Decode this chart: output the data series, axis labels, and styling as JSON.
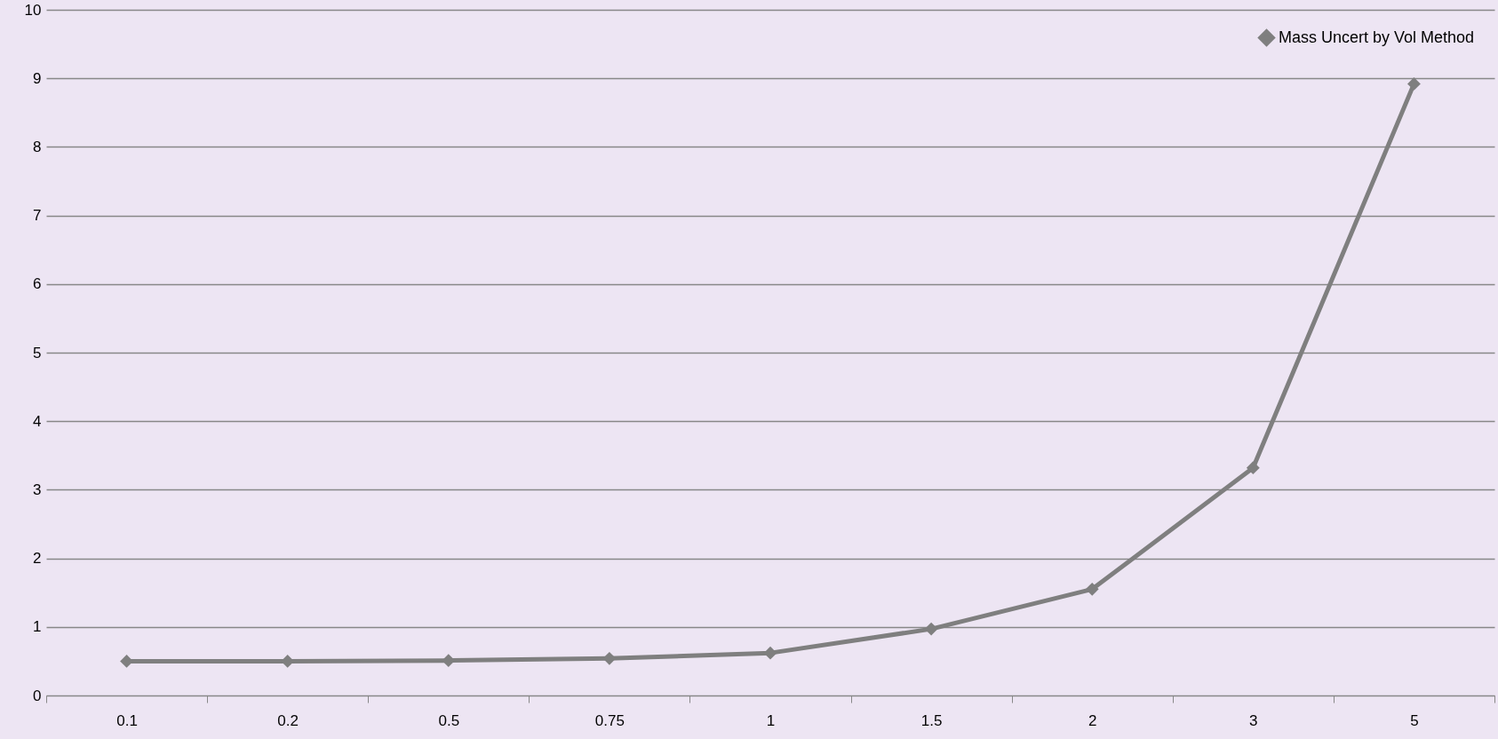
{
  "chart_data": {
    "type": "line",
    "categories": [
      "0.1",
      "0.2",
      "0.5",
      "0.75",
      "1",
      "1.5",
      "2",
      "3",
      "5"
    ],
    "series": [
      {
        "name": "Mass Uncert by Vol Method",
        "color": "#7f7f7f",
        "values": [
          0.5,
          0.5,
          0.51,
          0.54,
          0.62,
          0.97,
          1.55,
          3.32,
          8.92
        ]
      }
    ],
    "ylim": [
      0,
      10
    ],
    "yticks": [
      0,
      1,
      2,
      3,
      4,
      5,
      6,
      7,
      8,
      9,
      10
    ],
    "grid": "y",
    "legend": "top right",
    "marker": "diamond",
    "line_style": "solid"
  }
}
